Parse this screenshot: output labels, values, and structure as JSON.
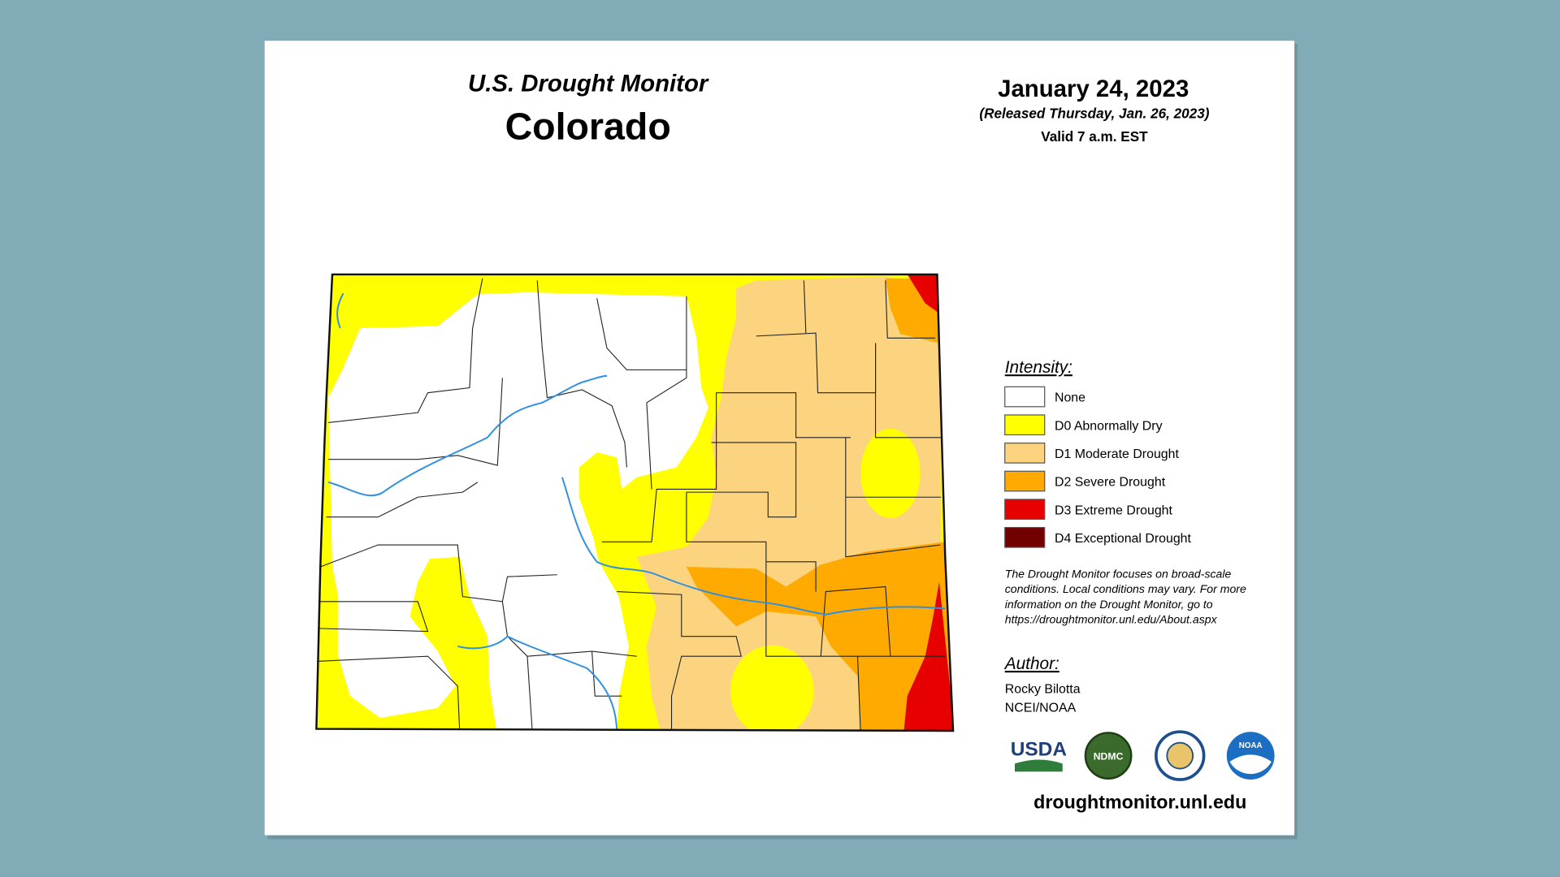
{
  "header": {
    "title": "U.S. Drought Monitor",
    "state": "Colorado",
    "date": "January 24, 2023",
    "released": "(Released Thursday, Jan. 26, 2023)",
    "valid": "Valid 7 a.m. EST"
  },
  "legend": {
    "title": "Intensity:",
    "items": [
      {
        "label": "None",
        "color": "#ffffff"
      },
      {
        "label": "D0 Abnormally Dry",
        "color": "#ffff00"
      },
      {
        "label": "D1 Moderate Drought",
        "color": "#fcd37f"
      },
      {
        "label": "D2 Severe Drought",
        "color": "#ffaa00"
      },
      {
        "label": "D3 Extreme Drought",
        "color": "#e60000"
      },
      {
        "label": "D4 Exceptional Drought",
        "color": "#730000"
      }
    ]
  },
  "note": [
    "The Drought Monitor focuses on broad-scale",
    "conditions. Local conditions may vary. For more",
    "information on the Drought Monitor, go to",
    "https://droughtmonitor.unl.edu/About.aspx"
  ],
  "author": {
    "title": "Author:",
    "lines": [
      "Rocky Bilotta",
      "NCEI/NOAA"
    ]
  },
  "logos": [
    "USDA",
    "NDMC",
    "NOAA"
  ],
  "url": "droughtmonitor.unl.edu"
}
